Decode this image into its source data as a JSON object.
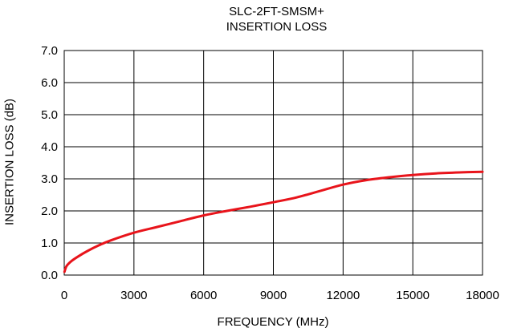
{
  "chart_data": {
    "type": "line",
    "title": [
      "SLC-2FT-SMSM+",
      "INSERTION LOSS"
    ],
    "xlabel": "FREQUENCY (MHz)",
    "ylabel": "INSERTION LOSS (dB)",
    "xlim": [
      0,
      18000
    ],
    "ylim": [
      0.0,
      7.0
    ],
    "x_ticks": [
      "0",
      "3000",
      "6000",
      "9000",
      "12000",
      "15000",
      "18000"
    ],
    "y_ticks": [
      "0.0",
      "1.0",
      "2.0",
      "3.0",
      "4.0",
      "5.0",
      "6.0",
      "7.0"
    ],
    "grid": true,
    "series": [
      {
        "color": "#e8141b",
        "x": [
          10,
          100,
          300,
          600,
          1000,
          1500,
          2000,
          3000,
          4000,
          5000,
          6000,
          7000,
          8000,
          9000,
          10000,
          11000,
          12000,
          13000,
          14000,
          15000,
          16000,
          17000,
          18000
        ],
        "y": [
          0.1,
          0.28,
          0.43,
          0.58,
          0.75,
          0.93,
          1.08,
          1.32,
          1.5,
          1.68,
          1.86,
          2.0,
          2.13,
          2.27,
          2.42,
          2.62,
          2.82,
          2.96,
          3.05,
          3.12,
          3.17,
          3.2,
          3.22
        ]
      }
    ]
  }
}
